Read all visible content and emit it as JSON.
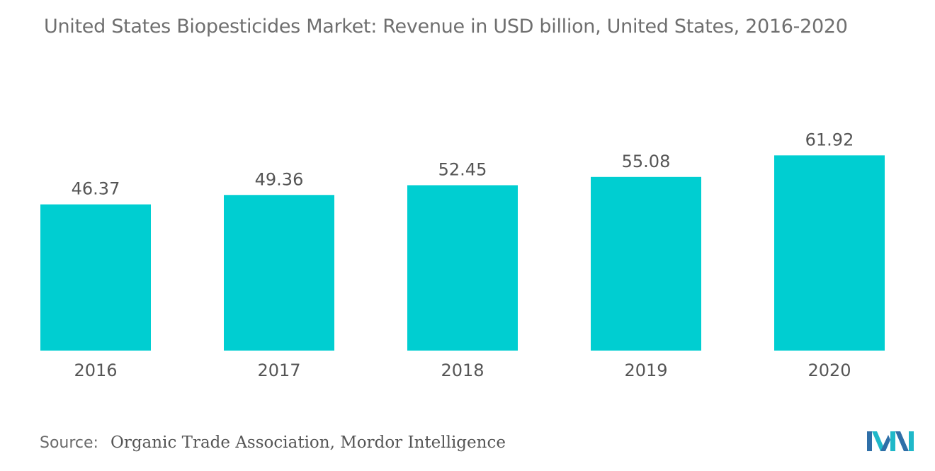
{
  "title": "United States Biopesticides Market: Revenue in USD billion, United States, 2016-2020",
  "source": {
    "label": "Source:",
    "text": "Organic Trade Association, Mordor Intelligence"
  },
  "colors": {
    "bar": "#00CED1",
    "text": "#555555",
    "title": "#6f6f6f"
  },
  "logo_icon": "mordor-intelligence-logo-icon",
  "chart_data": {
    "type": "bar",
    "title": "United States Biopesticides Market: Revenue in USD billion, United States, 2016-2020",
    "xlabel": "",
    "ylabel": "",
    "categories": [
      "2016",
      "2017",
      "2018",
      "2019",
      "2020"
    ],
    "values": [
      46.37,
      49.36,
      52.45,
      55.08,
      61.92
    ],
    "value_labels": [
      "46.37",
      "49.36",
      "52.45",
      "55.08",
      "61.92"
    ],
    "ylim": [
      0,
      62
    ],
    "grid": false,
    "legend": "none"
  }
}
